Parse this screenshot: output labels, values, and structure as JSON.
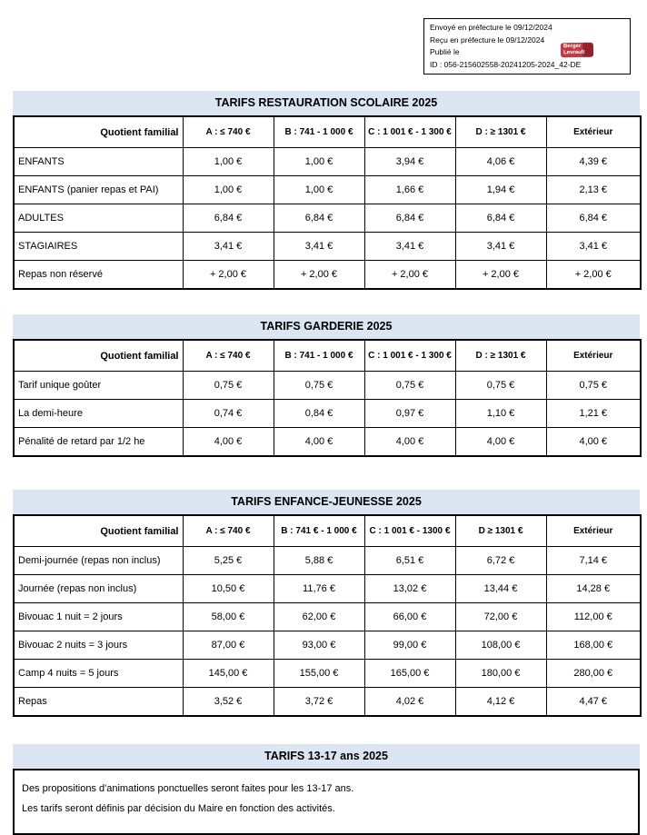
{
  "stamp": {
    "lines": [
      "Envoyé en préfecture le 09/12/2024",
      "Reçu en préfecture le 09/12/2024",
      "Publié le",
      "ID : 056-215602558-20241205-2024_42-DE"
    ],
    "logo": {
      "line1": "Berger",
      "line2": "Levrault",
      "color": "#bf3a45"
    }
  },
  "colors": {
    "title_bar_bg": "#dce6f2",
    "border": "#000000",
    "page_bg": "#ffffff"
  },
  "tables": [
    {
      "title": "TARIFS RESTAURATION SCOLAIRE 2025",
      "headers": [
        "Quotient familial",
        "A : ≤ 740 €",
        "B : 741 - 1 000 €",
        "C : 1 001 € - 1 300 €",
        "D : ≥ 1301 €",
        "Extérieur"
      ],
      "rows": [
        {
          "label": "ENFANTS",
          "values": [
            "1,00 €",
            "1,00 €",
            "3,94 €",
            "4,06 €",
            "4,39 €"
          ]
        },
        {
          "label": "ENFANTS (panier repas et PAI)",
          "values": [
            "1,00 €",
            "1,00 €",
            "1,66 €",
            "1,94 €",
            "2,13 €"
          ]
        },
        {
          "label": "ADULTES",
          "values": [
            "6,84 €",
            "6,84 €",
            "6,84 €",
            "6,84 €",
            "6,84 €"
          ]
        },
        {
          "label": "STAGIAIRES",
          "values": [
            "3,41 €",
            "3,41 €",
            "3,41 €",
            "3,41 €",
            "3,41 €"
          ]
        },
        {
          "label": "Repas non réservé",
          "values": [
            "+ 2,00 €",
            "+ 2,00 €",
            "+ 2,00 €",
            "+ 2,00 €",
            "+ 2,00 €"
          ]
        }
      ]
    },
    {
      "title": "TARIFS GARDERIE 2025",
      "headers": [
        "Quotient familial",
        "A : ≤ 740 €",
        "B : 741 - 1 000 €",
        "C : 1 001 € - 1 300 €",
        "D : ≥ 1301 €",
        "Extérieur"
      ],
      "rows": [
        {
          "label": "Tarif unique goûter",
          "values": [
            "0,75 €",
            "0,75 €",
            "0,75 €",
            "0,75 €",
            "0,75 €"
          ]
        },
        {
          "label": "La demi-heure",
          "values": [
            "0,74 €",
            "0,84 €",
            "0,97 €",
            "1,10 €",
            "1,21 €"
          ]
        },
        {
          "label": "Pénalité de retard par 1/2 he",
          "values": [
            "4,00 €",
            "4,00 €",
            "4,00 €",
            "4,00 €",
            "4,00 €"
          ]
        }
      ]
    },
    {
      "title": "TARIFS ENFANCE-JEUNESSE 2025",
      "headers": [
        "Quotient familial",
        "A : ≤ 740 €",
        "B : 741 € - 1 000 €",
        "C : 1 001 € - 1300 €",
        "D ≥ 1301 €",
        "Extérieur"
      ],
      "rows": [
        {
          "label": "Demi-journée (repas non inclus)",
          "values": [
            "5,25 €",
            "5,88 €",
            "6,51 €",
            "6,72 €",
            "7,14 €"
          ]
        },
        {
          "label": "Journée (repas non inclus)",
          "values": [
            "10,50 €",
            "11,76 €",
            "13,02 €",
            "13,44 €",
            "14,28 €"
          ]
        },
        {
          "label": "Bivouac 1 nuit = 2 jours",
          "values": [
            "58,00 €",
            "62,00 €",
            "66,00 €",
            "72,00 €",
            "112,00 €"
          ]
        },
        {
          "label": "Bivouac 2 nuits = 3 jours",
          "values": [
            "87,00 €",
            "93,00 €",
            "99,00 €",
            "108,00 €",
            "168,00 €"
          ]
        },
        {
          "label": "Camp 4 nuits = 5 jours",
          "values": [
            "145,00 €",
            "155,00 €",
            "165,00 €",
            "180,00 €",
            "280,00 €"
          ]
        },
        {
          "label": "Repas",
          "values": [
            "3,52 €",
            "3,72 €",
            "4,02 €",
            "4,12 €",
            "4,47 €"
          ]
        }
      ]
    }
  ],
  "note_section": {
    "title": "TARIFS 13-17 ans 2025",
    "lines": [
      "Des propositions d'animations ponctuelles seront faites pour les 13-17 ans.",
      "Les tarifs seront définis par décision du Maire en fonction des activités."
    ]
  }
}
